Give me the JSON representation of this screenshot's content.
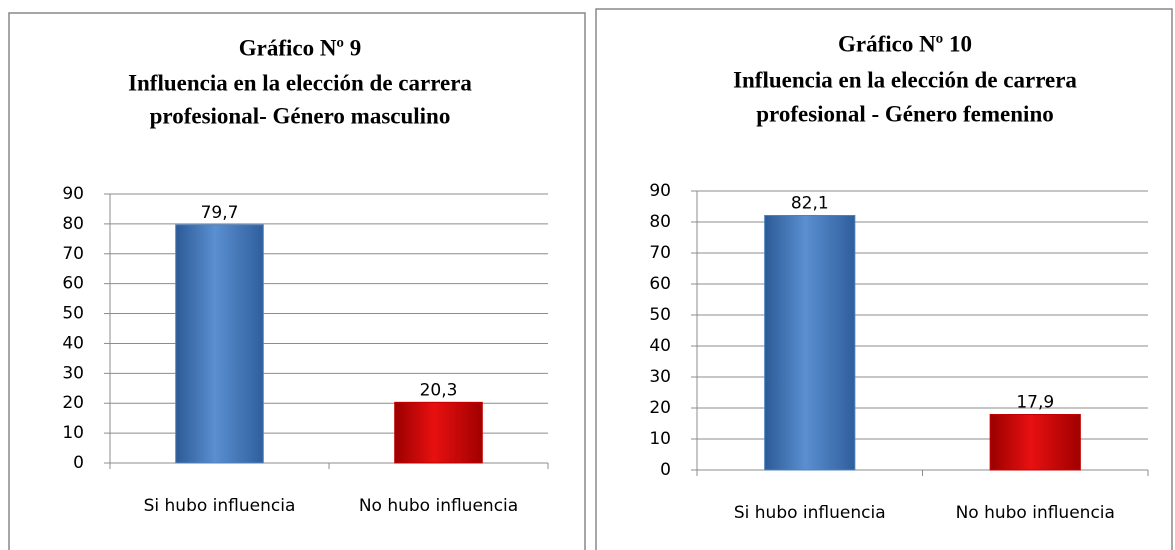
{
  "chart_data": [
    {
      "type": "bar",
      "title": [
        "Gráfico Nº 9",
        "Influencia en la elección de carrera",
        "profesional- Género masculino"
      ],
      "categories": [
        "Si hubo influencia",
        "No hubo influencia"
      ],
      "values": [
        79.7,
        20.3
      ],
      "value_labels": [
        "79,7",
        "20,3"
      ],
      "colors": [
        "#4f81bd",
        "#c00000"
      ],
      "ylim": [
        0,
        90
      ],
      "yticks": [
        0,
        10,
        20,
        30,
        40,
        50,
        60,
        70,
        80,
        90
      ],
      "grid": true
    },
    {
      "type": "bar",
      "title": [
        "Gráfico Nº 10",
        "Influencia en la elección de carrera",
        "profesional - Género femenino"
      ],
      "categories": [
        "Si hubo influencia",
        "No hubo influencia"
      ],
      "values": [
        82.1,
        17.9
      ],
      "value_labels": [
        "82,1",
        "17,9"
      ],
      "colors": [
        "#4f81bd",
        "#c00000"
      ],
      "ylim": [
        0,
        90
      ],
      "yticks": [
        0,
        10,
        20,
        30,
        40,
        50,
        60,
        70,
        80,
        90
      ],
      "grid": true
    }
  ]
}
